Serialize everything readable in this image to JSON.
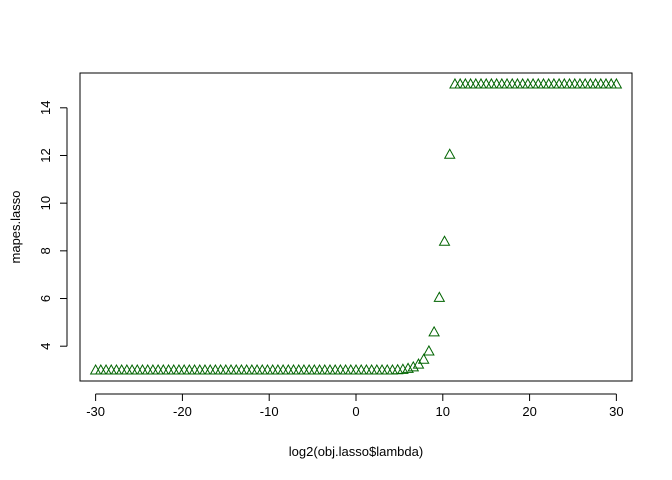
{
  "chart_data": {
    "type": "scatter",
    "xlabel": "log2(obj.lasso$lambda)",
    "ylabel": "mapes.lasso",
    "xlim": [
      -31.8,
      31.8
    ],
    "ylim": [
      2.54,
      15.46
    ],
    "xticks": [
      -30,
      -20,
      -10,
      0,
      10,
      20,
      30
    ],
    "yticks": [
      4,
      6,
      8,
      10,
      12,
      14
    ],
    "marker": "open-triangle",
    "marker_color": "#006400",
    "grid": false,
    "series": [
      {
        "x": [
          -30.0,
          -29.4,
          -28.8,
          -28.2,
          -27.6,
          -27.0,
          -26.4,
          -25.8,
          -25.2,
          -24.6,
          -24.0,
          -23.4,
          -22.8,
          -22.2,
          -21.6,
          -21.0,
          -20.4,
          -19.8,
          -19.2,
          -18.6,
          -18.0,
          -17.4,
          -16.8,
          -16.2,
          -15.6,
          -15.0,
          -14.4,
          -13.8,
          -13.2,
          -12.6,
          -12.0,
          -11.4,
          -10.8,
          -10.2,
          -9.6,
          -9.0,
          -8.4,
          -7.8,
          -7.2,
          -6.6,
          -6.0,
          -5.4,
          -4.8,
          -4.2,
          -3.6,
          -3.0,
          -2.4,
          -1.8,
          -1.2,
          -0.6,
          0.0,
          0.6,
          1.2,
          1.8,
          2.4,
          3.0,
          3.6,
          4.2,
          4.8,
          5.4,
          6.0,
          6.6,
          7.2,
          7.8,
          8.4,
          9.0,
          9.6,
          10.2,
          10.8,
          11.4,
          12.0,
          12.6,
          13.2,
          13.8,
          14.4,
          15.0,
          15.6,
          16.2,
          16.8,
          17.4,
          18.0,
          18.6,
          19.2,
          19.8,
          20.4,
          21.0,
          21.6,
          22.2,
          22.8,
          23.4,
          24.0,
          24.6,
          25.2,
          25.8,
          26.4,
          27.0,
          27.6,
          28.2,
          28.8,
          29.4,
          30.0
        ],
        "y": [
          3.0,
          3.0,
          3.0,
          3.0,
          3.0,
          3.0,
          3.0,
          3.0,
          3.0,
          3.0,
          3.0,
          3.0,
          3.0,
          3.0,
          3.0,
          3.0,
          3.0,
          3.0,
          3.0,
          3.0,
          3.0,
          3.0,
          3.0,
          3.0,
          3.0,
          3.0,
          3.0,
          3.0,
          3.0,
          3.0,
          3.0,
          3.0,
          3.0,
          3.0,
          3.0,
          3.0,
          3.0,
          3.0,
          3.0,
          3.0,
          3.0,
          3.0,
          3.0,
          3.0,
          3.0,
          3.0,
          3.0,
          3.0,
          3.0,
          3.0,
          3.0,
          3.0,
          3.0,
          3.0,
          3.0,
          3.0,
          3.0,
          3.0,
          3.01,
          3.03,
          3.07,
          3.13,
          3.25,
          3.45,
          3.8,
          4.6,
          6.05,
          8.4,
          12.05,
          15.0,
          15.0,
          15.0,
          15.0,
          15.0,
          15.0,
          15.0,
          15.0,
          15.0,
          15.0,
          15.0,
          15.0,
          15.0,
          15.0,
          15.0,
          15.0,
          15.0,
          15.0,
          15.0,
          15.0,
          15.0,
          15.0,
          15.0,
          15.0,
          15.0,
          15.0,
          15.0,
          15.0,
          15.0,
          15.0,
          15.0,
          15.0
        ]
      }
    ]
  }
}
